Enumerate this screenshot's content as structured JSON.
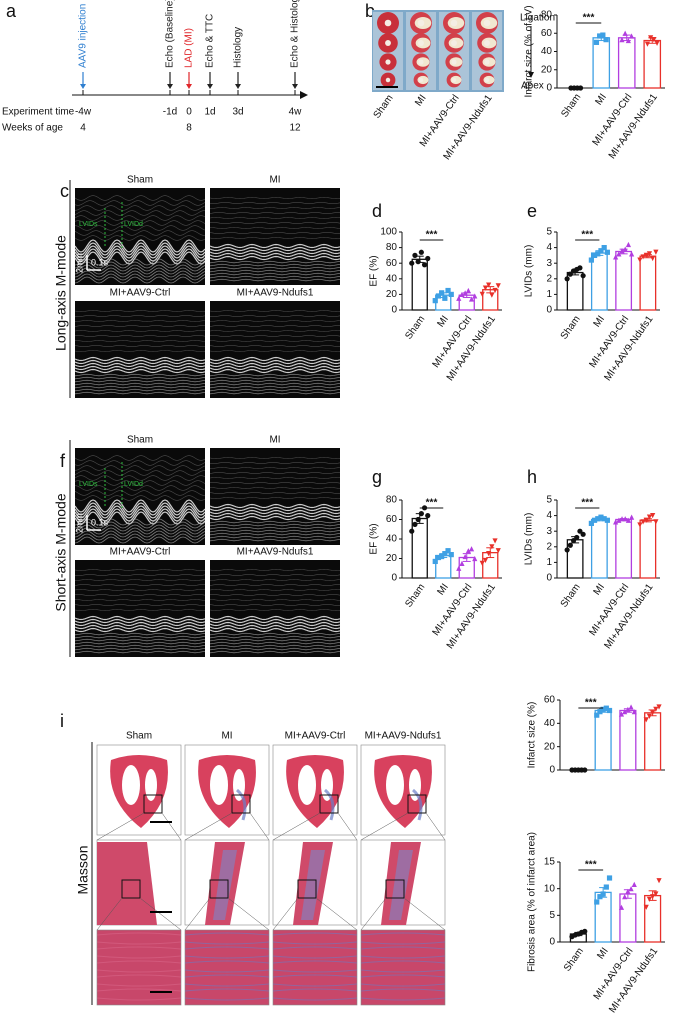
{
  "panels": [
    "a",
    "b",
    "c",
    "d",
    "e",
    "f",
    "g",
    "h",
    "i"
  ],
  "timeline": {
    "row_labels": [
      "Experiment time",
      "Weeks of age"
    ],
    "events": [
      {
        "time": "-4w",
        "label": "AAV9 injection",
        "age": "4",
        "color": "#2f7fd0"
      },
      {
        "time": "-1d",
        "label": "Echo (Baseline)",
        "color": "#222222"
      },
      {
        "time": "0",
        "label": "LAD (MI)",
        "age": "8",
        "color": "#e0262a"
      },
      {
        "time": "1d",
        "label": "Echo & TTC",
        "color": "#222222"
      },
      {
        "time": "3d",
        "label": "Histology",
        "color": "#222222"
      },
      {
        "time": "4w",
        "label": "Echo & Histology",
        "age": "12",
        "color": "#222222"
      }
    ]
  },
  "ttc": {
    "groups": [
      "Sham",
      "MI",
      "MI+AAV9-Ctrl",
      "MI+AAV9-Ndufs1"
    ],
    "top": "Ligation",
    "bottom": "Apex"
  },
  "echo_long": {
    "title": "Long-axis M-mode",
    "groups": [
      "Sham",
      "MI",
      "MI+AAV9-Ctrl",
      "MI+AAV9-Ndufs1"
    ],
    "markers": [
      "LVIDs",
      "LVIDd"
    ],
    "scale": [
      "2mm",
      "0.1s"
    ]
  },
  "echo_short": {
    "title": "Short-axis M-mode",
    "groups": [
      "Sham",
      "MI",
      "MI+AAV9-Ctrl",
      "MI+AAV9-Ndufs1"
    ],
    "markers": [
      "LVIDs",
      "LVIDd"
    ],
    "scale": [
      "2mm",
      "0.1s"
    ]
  },
  "masson": {
    "title": "Masson",
    "groups": [
      "Sham",
      "MI",
      "MI+AAV9-Ctrl",
      "MI+AAV9-Ndufs1"
    ]
  },
  "point_markers": [
    "circle",
    "square",
    "triangle",
    "triangle-down"
  ],
  "chart_data": [
    {
      "type": "bar",
      "ylabel": "Infarct size (% of LV)",
      "categories": [
        "Sham",
        "MI",
        "MI+AAV9-Ctrl",
        "MI+AAV9-Ndufs1"
      ],
      "colors": [
        "#111111",
        "#3ea0e4",
        "#b23ee0",
        "#e8302a"
      ],
      "values": [
        0,
        55,
        55,
        52
      ],
      "errors": [
        0,
        3,
        3,
        3
      ],
      "points": [
        [
          0,
          0,
          0,
          0
        ],
        [
          50,
          57,
          58,
          53
        ],
        [
          53,
          60,
          52,
          57
        ],
        [
          48,
          55,
          53,
          49
        ]
      ],
      "ylim": [
        0,
        80
      ],
      "yticks": [
        0,
        20,
        40,
        60,
        80
      ],
      "significance": "***"
    },
    {
      "type": "bar",
      "ylabel": "EF (%)",
      "categories": [
        "Sham",
        "MI",
        "MI+AAV9-Ctrl",
        "MI+AAV9-Ndufs1"
      ],
      "colors": [
        "#111111",
        "#3ea0e4",
        "#b23ee0",
        "#e8302a"
      ],
      "values": [
        65,
        19,
        19,
        26
      ],
      "errors": [
        4,
        3,
        3,
        4
      ],
      "points": [
        [
          60,
          70,
          62,
          74,
          58,
          66
        ],
        [
          12,
          18,
          22,
          15,
          25,
          20
        ],
        [
          15,
          20,
          22,
          25,
          14,
          18
        ],
        [
          20,
          28,
          32,
          19,
          25,
          31
        ]
      ],
      "ylim": [
        0,
        100
      ],
      "yticks": [
        0,
        20,
        40,
        60,
        80,
        100
      ],
      "significance": "***"
    },
    {
      "type": "bar",
      "ylabel": "LVIDs (mm)",
      "categories": [
        "Sham",
        "MI",
        "MI+AAV9-Ctrl",
        "MI+AAV9-Ndufs1"
      ],
      "colors": [
        "#111111",
        "#3ea0e4",
        "#b23ee0",
        "#e8302a"
      ],
      "values": [
        2.4,
        3.65,
        3.75,
        3.45
      ],
      "errors": [
        0.15,
        0.15,
        0.15,
        0.1
      ],
      "points": [
        [
          2.0,
          2.3,
          2.5,
          2.6,
          2.7,
          2.2
        ],
        [
          3.2,
          3.5,
          3.6,
          3.8,
          4.0,
          3.7
        ],
        [
          3.4,
          3.6,
          3.8,
          3.9,
          4.2,
          3.6
        ],
        [
          3.2,
          3.4,
          3.5,
          3.6,
          3.3,
          3.7
        ]
      ],
      "ylim": [
        0,
        5
      ],
      "yticks": [
        0,
        1,
        2,
        3,
        4,
        5
      ],
      "significance": "***"
    },
    {
      "type": "bar",
      "ylabel": "EF (%)",
      "categories": [
        "Sham",
        "MI",
        "MI+AAV9-Ctrl",
        "MI+AAV9-Ndufs1"
      ],
      "colors": [
        "#111111",
        "#3ea0e4",
        "#b23ee0",
        "#e8302a"
      ],
      "values": [
        61,
        23,
        21,
        26
      ],
      "errors": [
        5,
        2,
        4,
        5
      ],
      "points": [
        [
          48,
          55,
          60,
          66,
          72,
          64
        ],
        [
          17,
          21,
          22,
          25,
          28,
          24
        ],
        [
          10,
          15,
          22,
          28,
          30,
          20
        ],
        [
          15,
          18,
          25,
          32,
          38,
          28
        ]
      ],
      "ylim": [
        0,
        80
      ],
      "yticks": [
        0,
        20,
        40,
        60,
        80
      ],
      "significance": "***"
    },
    {
      "type": "bar",
      "ylabel": "LVIDs (mm)",
      "categories": [
        "Sham",
        "MI",
        "MI+AAV9-Ctrl",
        "MI+AAV9-Ndufs1"
      ],
      "colors": [
        "#111111",
        "#3ea0e4",
        "#b23ee0",
        "#e8302a"
      ],
      "values": [
        2.45,
        3.75,
        3.75,
        3.7
      ],
      "errors": [
        0.2,
        0.08,
        0.06,
        0.1
      ],
      "points": [
        [
          1.8,
          2.1,
          2.4,
          2.6,
          3.0,
          2.8
        ],
        [
          3.5,
          3.7,
          3.8,
          3.9,
          3.8,
          3.7
        ],
        [
          3.6,
          3.7,
          3.8,
          3.8,
          3.7,
          3.9
        ],
        [
          3.4,
          3.6,
          3.7,
          3.9,
          4.0,
          3.6
        ]
      ],
      "ylim": [
        0,
        5
      ],
      "yticks": [
        0,
        1,
        2,
        3,
        4,
        5
      ],
      "significance": "***"
    },
    {
      "type": "bar",
      "ylabel": "Infarct size (%)",
      "colors": [
        "#111111",
        "#3ea0e4",
        "#b23ee0",
        "#e8302a"
      ],
      "values": [
        0,
        51,
        51,
        49
      ],
      "errors": [
        0,
        1.5,
        1.5,
        2.5
      ],
      "points": [
        [
          0,
          0,
          0,
          0,
          0
        ],
        [
          47,
          50,
          52,
          53,
          51
        ],
        [
          48,
          50,
          52,
          54,
          50
        ],
        [
          43,
          46,
          49,
          52,
          54
        ]
      ],
      "ylim": [
        0,
        60
      ],
      "yticks": [
        0,
        20,
        40,
        60
      ],
      "significance": "***"
    },
    {
      "type": "bar",
      "ylabel": "Fibrosis area (% of infarct area)",
      "categories": [
        "Sham",
        "MI",
        "MI+AAV9-Ctrl",
        "MI+AAV9-Ndufs1"
      ],
      "colors": [
        "#111111",
        "#3ea0e4",
        "#b23ee0",
        "#e8302a"
      ],
      "values": [
        1.5,
        9.3,
        9.0,
        8.7
      ],
      "errors": [
        0.3,
        0.9,
        0.8,
        0.9
      ],
      "points": [
        [
          1.0,
          1.3,
          1.5,
          1.8,
          2.0
        ],
        [
          7.5,
          8.5,
          9.0,
          10.3,
          12.0
        ],
        [
          6.5,
          8.5,
          9.5,
          10.0,
          10.8
        ],
        [
          6.5,
          8.0,
          8.5,
          9.0,
          11.5
        ]
      ],
      "ylim": [
        0,
        15
      ],
      "yticks": [
        0,
        5,
        10,
        15
      ],
      "significance": "***"
    }
  ]
}
